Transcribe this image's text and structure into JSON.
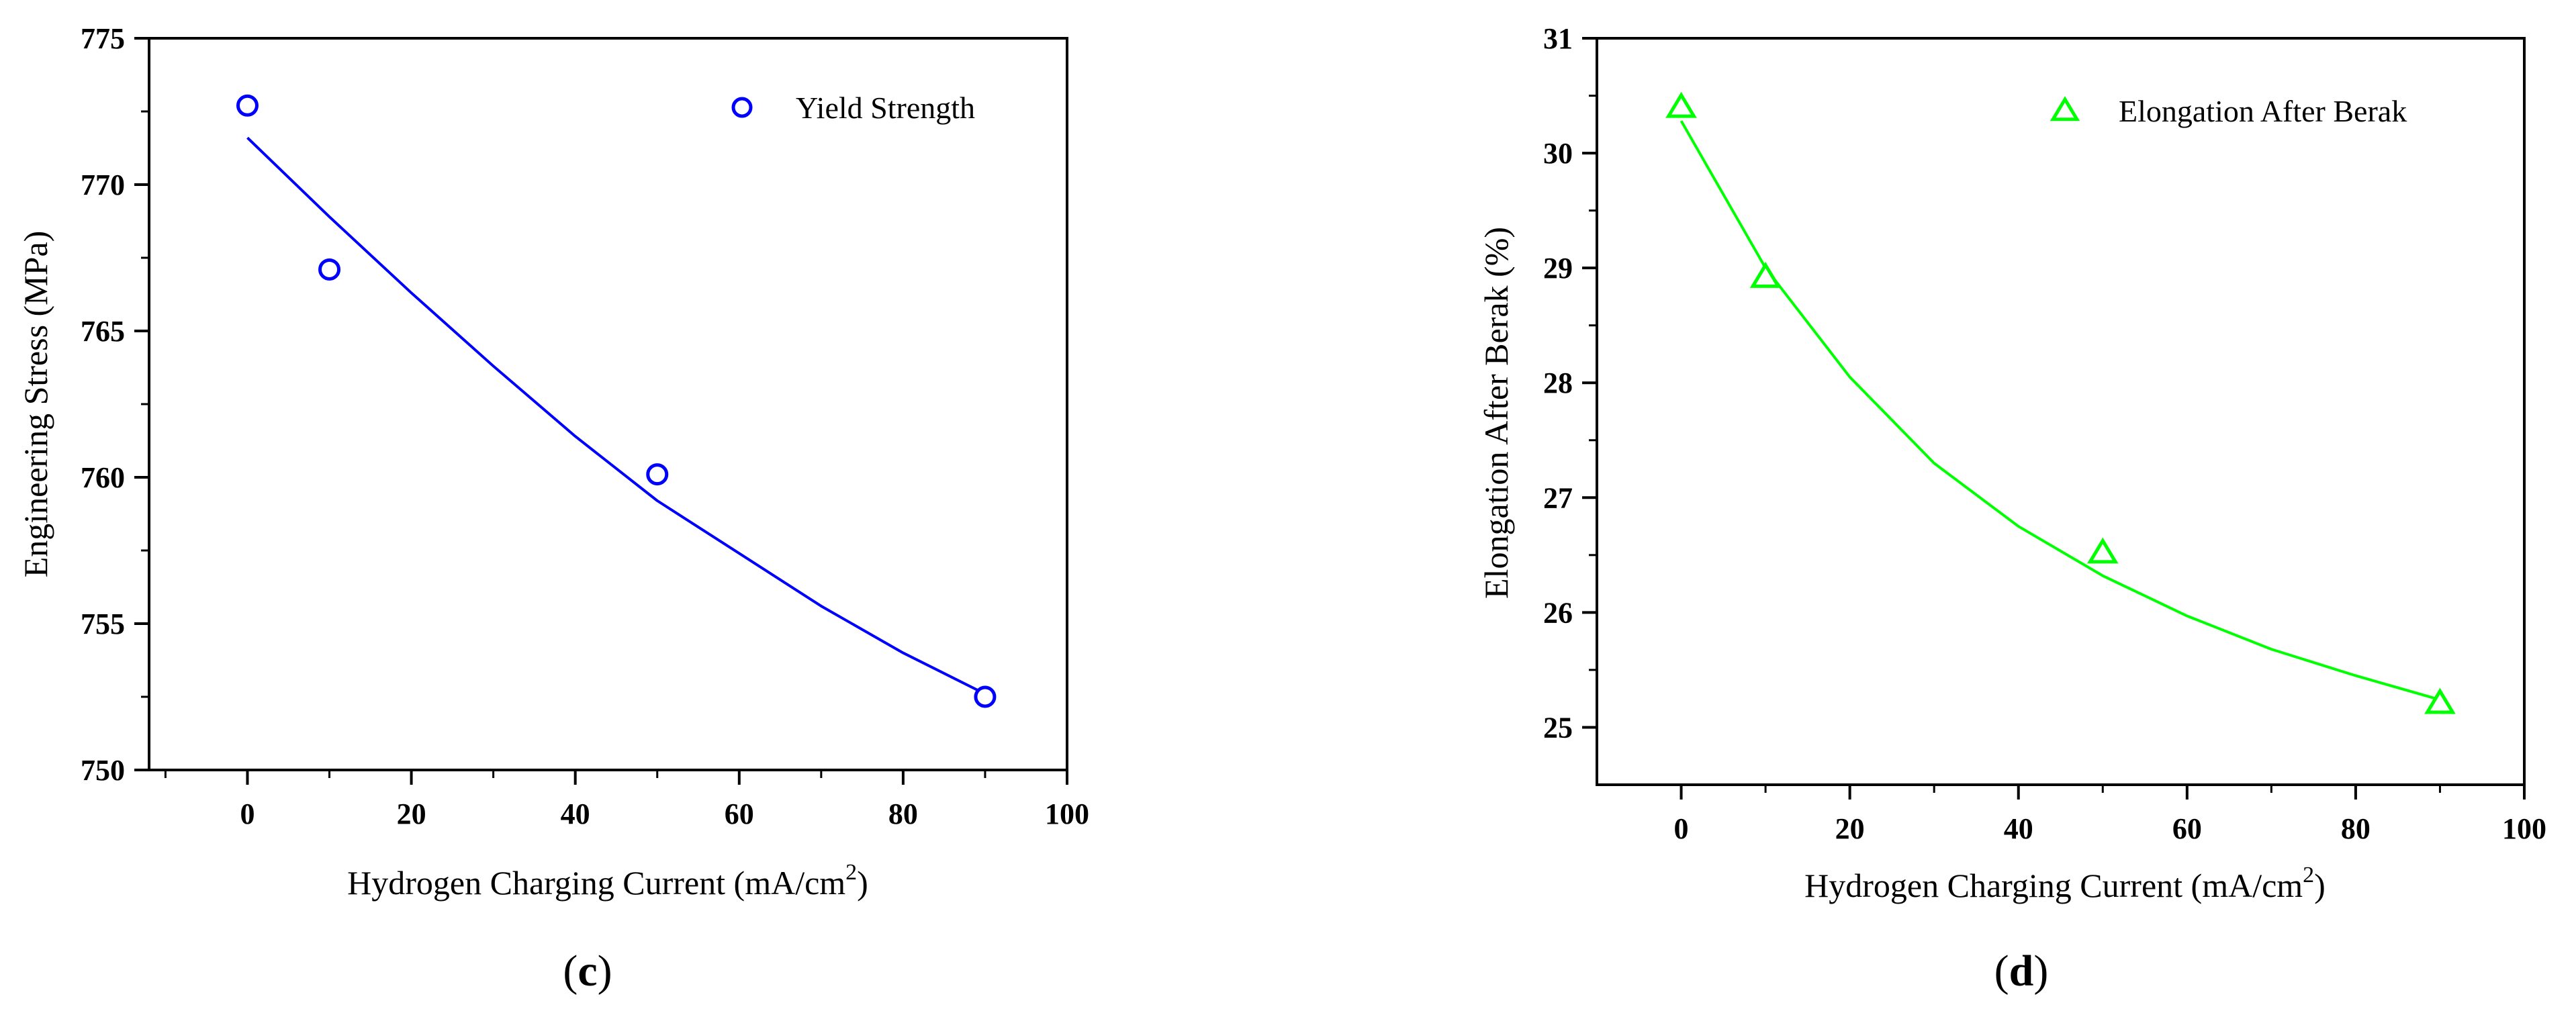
{
  "chart_data": [
    {
      "type": "scatter",
      "panel_label": "c",
      "xlabel_text": "Hydrogen Charging Current (mA/cm",
      "xlabel_sup": "2",
      "xlabel_end": ")",
      "ylabel": "Engineering Stress (MPa)",
      "xlim": [
        -12,
        100
      ],
      "ylim": [
        750,
        775
      ],
      "xticks": [
        0,
        20,
        40,
        60,
        80,
        100
      ],
      "yticks": [
        750,
        755,
        760,
        765,
        770,
        775
      ],
      "series": [
        {
          "name": "Yield Strength",
          "marker": "circle",
          "color": "#0000ff",
          "x": [
            0,
            10,
            50,
            90
          ],
          "y": [
            772.7,
            767.1,
            760.1,
            752.5
          ],
          "fit": {
            "x": [
              0,
              10,
              20,
              30,
              40,
              50,
              60,
              70,
              80,
              90
            ],
            "y": [
              771.6,
              768.9,
              766.3,
              763.8,
              761.4,
              759.2,
              757.4,
              755.6,
              754.0,
              752.6
            ]
          }
        }
      ],
      "legend_position": "top-right"
    },
    {
      "type": "scatter",
      "panel_label": "d",
      "xlabel_text": "Hydrogen Charging Current (mA/cm",
      "xlabel_sup": "2",
      "xlabel_end": ")",
      "ylabel": "Elongation After Berak (%)",
      "xlim": [
        -10,
        100
      ],
      "ylim": [
        24.5,
        31
      ],
      "xticks": [
        0,
        20,
        40,
        60,
        80,
        100
      ],
      "yticks": [
        25,
        26,
        27,
        28,
        29,
        30,
        31
      ],
      "series": [
        {
          "name": "Elongation After Berak",
          "marker": "triangle",
          "color": "#00ff00",
          "x": [
            0,
            10,
            50,
            90
          ],
          "y": [
            30.4,
            28.92,
            26.52,
            25.21
          ],
          "fit": {
            "x": [
              0,
              10,
              20,
              30,
              40,
              50,
              60,
              70,
              80,
              90
            ],
            "y": [
              30.28,
              29.0,
              28.05,
              27.3,
              26.75,
              26.32,
              25.97,
              25.68,
              25.45,
              25.24
            ]
          }
        }
      ],
      "legend_position": "top-right"
    }
  ]
}
